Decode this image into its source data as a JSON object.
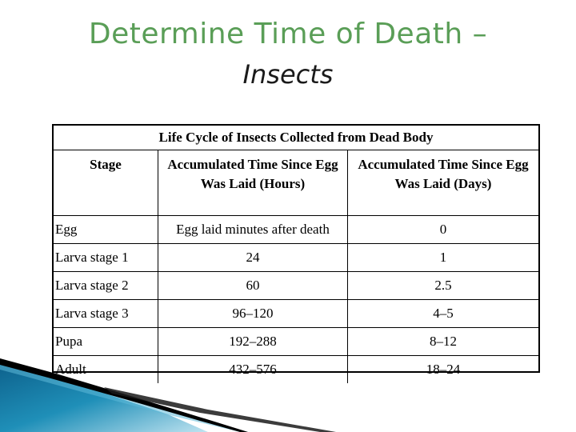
{
  "title": {
    "line1": "Determine Time of Death –",
    "line2": "Insects"
  },
  "table": {
    "caption": "Life Cycle of Insects Collected from Dead Body",
    "headers": [
      "Stage",
      "Accumulated Time Since Egg Was Laid (Hours)",
      "Accumulated Time Since Egg Was Laid (Days)"
    ],
    "rows": [
      [
        "Egg",
        "Egg laid minutes after death",
        "0"
      ],
      [
        "Larva stage 1",
        "24",
        "1"
      ],
      [
        "Larva stage 2",
        "60",
        "2.5"
      ],
      [
        "Larva stage 3",
        "96–120",
        "4–5"
      ],
      [
        "Pupa",
        "192–288",
        "8–12"
      ],
      [
        "Adult",
        "432–576",
        "18–24"
      ]
    ]
  },
  "colors": {
    "title_green": "#5a9e57",
    "decoration_blue": "#1f8fb8",
    "decoration_black": "#000000"
  }
}
